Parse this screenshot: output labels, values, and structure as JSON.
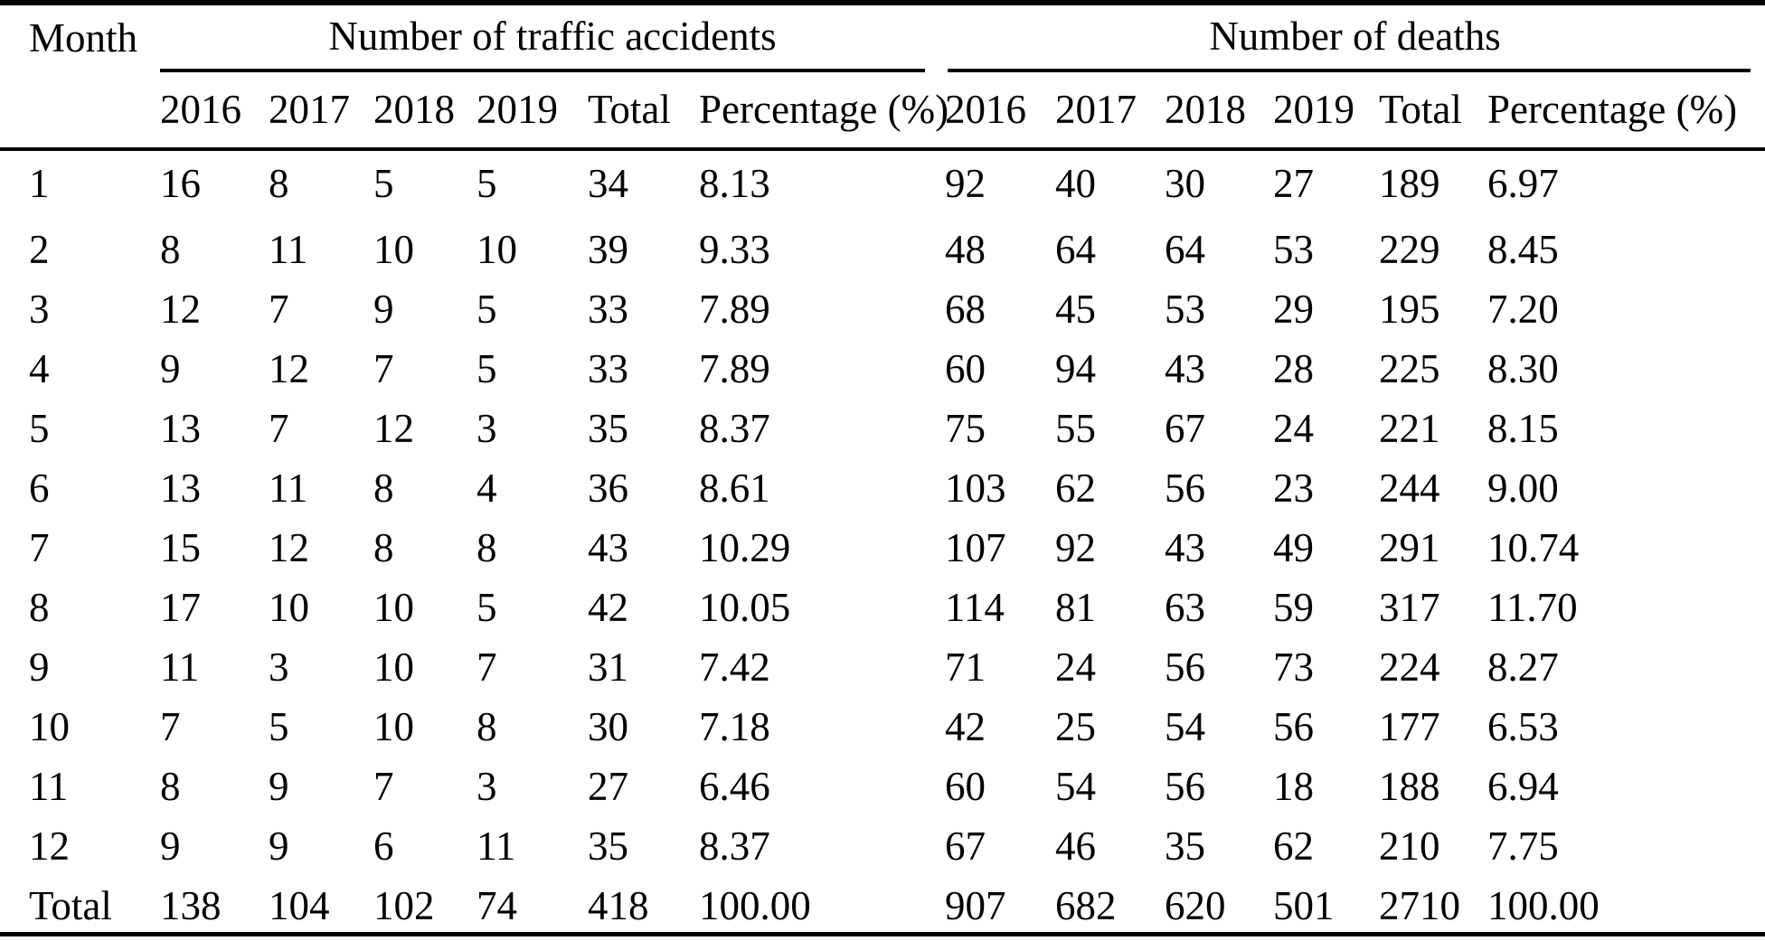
{
  "table": {
    "month_header": "Month",
    "groups": [
      {
        "title": "Number of traffic accidents",
        "columns": [
          "2016",
          "2017",
          "2018",
          "2019",
          "Total",
          "Percentage (%)"
        ]
      },
      {
        "title": "Number of deaths",
        "columns": [
          "2016",
          "2017",
          "2018",
          "2019",
          "Total",
          "Percentage (%)"
        ]
      }
    ],
    "rows": [
      {
        "month": "1",
        "accidents": [
          "16",
          "8",
          "5",
          "5",
          "34",
          "8.13"
        ],
        "deaths": [
          "92",
          "40",
          "30",
          "27",
          "189",
          "6.97"
        ]
      },
      {
        "month": "2",
        "accidents": [
          "8",
          "11",
          "10",
          "10",
          "39",
          "9.33"
        ],
        "deaths": [
          "48",
          "64",
          "64",
          "53",
          "229",
          "8.45"
        ]
      },
      {
        "month": "3",
        "accidents": [
          "12",
          "7",
          "9",
          "5",
          "33",
          "7.89"
        ],
        "deaths": [
          "68",
          "45",
          "53",
          "29",
          "195",
          "7.20"
        ]
      },
      {
        "month": "4",
        "accidents": [
          "9",
          "12",
          "7",
          "5",
          "33",
          "7.89"
        ],
        "deaths": [
          "60",
          "94",
          "43",
          "28",
          "225",
          "8.30"
        ]
      },
      {
        "month": "5",
        "accidents": [
          "13",
          "7",
          "12",
          "3",
          "35",
          "8.37"
        ],
        "deaths": [
          "75",
          "55",
          "67",
          "24",
          "221",
          "8.15"
        ]
      },
      {
        "month": "6",
        "accidents": [
          "13",
          "11",
          "8",
          "4",
          "36",
          "8.61"
        ],
        "deaths": [
          "103",
          "62",
          "56",
          "23",
          "244",
          "9.00"
        ]
      },
      {
        "month": "7",
        "accidents": [
          "15",
          "12",
          "8",
          "8",
          "43",
          "10.29"
        ],
        "deaths": [
          "107",
          "92",
          "43",
          "49",
          "291",
          "10.74"
        ]
      },
      {
        "month": "8",
        "accidents": [
          "17",
          "10",
          "10",
          "5",
          "42",
          "10.05"
        ],
        "deaths": [
          "114",
          "81",
          "63",
          "59",
          "317",
          "11.70"
        ]
      },
      {
        "month": "9",
        "accidents": [
          "11",
          "3",
          "10",
          "7",
          "31",
          "7.42"
        ],
        "deaths": [
          "71",
          "24",
          "56",
          "73",
          "224",
          "8.27"
        ]
      },
      {
        "month": "10",
        "accidents": [
          "7",
          "5",
          "10",
          "8",
          "30",
          "7.18"
        ],
        "deaths": [
          "42",
          "25",
          "54",
          "56",
          "177",
          "6.53"
        ]
      },
      {
        "month": "11",
        "accidents": [
          "8",
          "9",
          "7",
          "3",
          "27",
          "6.46"
        ],
        "deaths": [
          "60",
          "54",
          "56",
          "18",
          "188",
          "6.94"
        ]
      },
      {
        "month": "12",
        "accidents": [
          "9",
          "9",
          "6",
          "11",
          "35",
          "8.37"
        ],
        "deaths": [
          "67",
          "46",
          "35",
          "62",
          "210",
          "7.75"
        ]
      },
      {
        "month": "Total",
        "accidents": [
          "138",
          "104",
          "102",
          "74",
          "418",
          "100.00"
        ],
        "deaths": [
          "907",
          "682",
          "620",
          "501",
          "2710",
          "100.00"
        ]
      }
    ]
  }
}
